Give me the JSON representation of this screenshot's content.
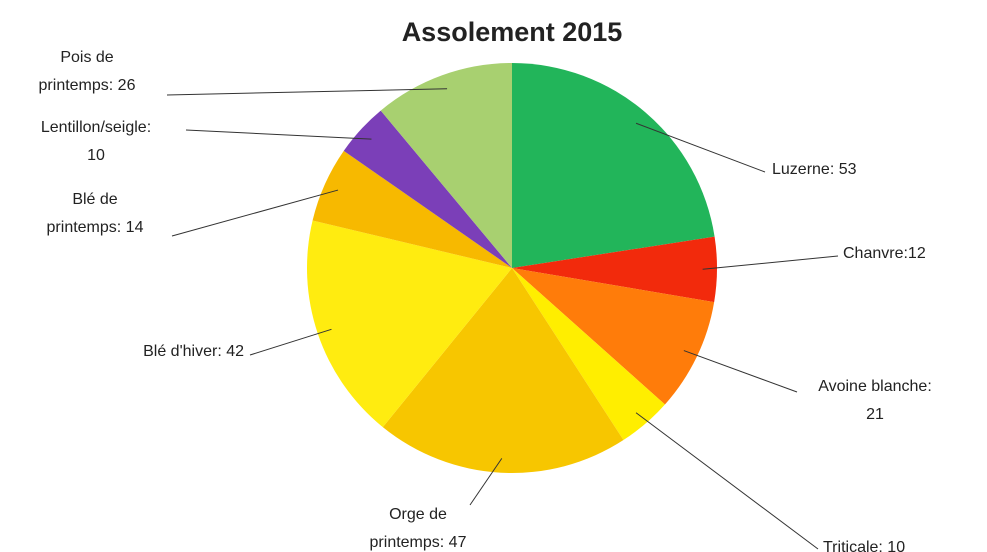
{
  "chart_data": {
    "type": "pie",
    "title": "Assolement 2015",
    "values": [
      53,
      12,
      21,
      10,
      47,
      42,
      14,
      10,
      26
    ],
    "value_labels": [
      [
        "Luzerne: 53"
      ],
      [
        "Chanvre:12"
      ],
      [
        "Avoine blanche:",
        "21"
      ],
      [
        "Triticale: 10"
      ],
      [
        "Orge de",
        "printemps: 47"
      ],
      [
        "Blé d'hiver: 42"
      ],
      [
        "Blé de",
        "printemps: 14"
      ],
      [
        "Lentillon/seigle:",
        "10"
      ],
      [
        "Pois de",
        "printemps: 26"
      ]
    ],
    "colors": [
      "#22b55a",
      "#f22a0c",
      "#ff7c0a",
      "#ffee00",
      "#f7c600",
      "#ffec10",
      "#f7b900",
      "#7b3fb8",
      "#a8d070"
    ]
  }
}
